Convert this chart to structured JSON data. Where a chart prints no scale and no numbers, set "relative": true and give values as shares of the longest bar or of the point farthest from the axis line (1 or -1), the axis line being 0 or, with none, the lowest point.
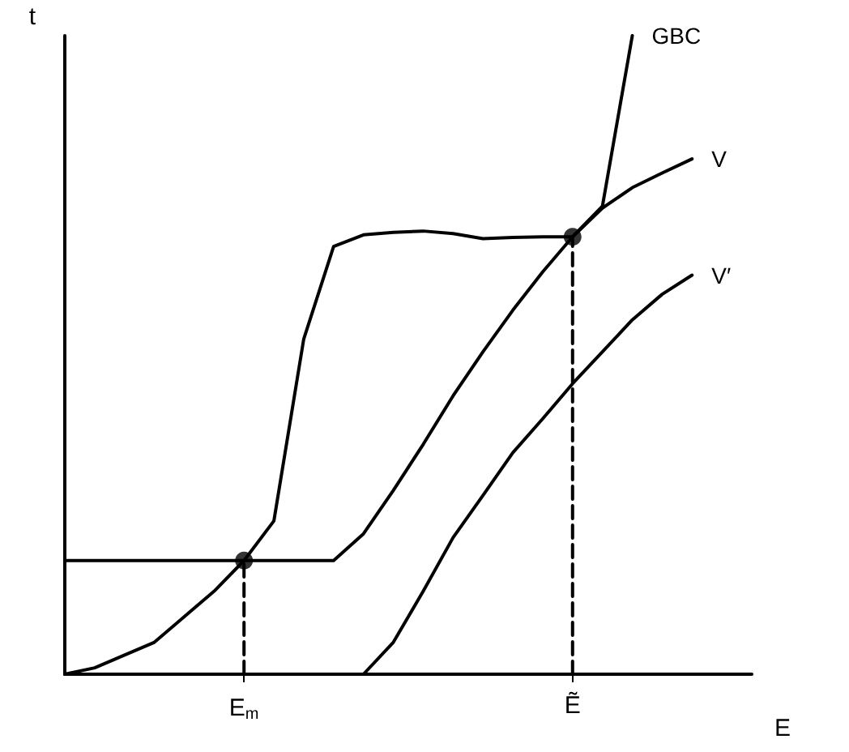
{
  "chart_data": {
    "type": "line",
    "relative": true,
    "xlabel": "E",
    "ylabel": "t",
    "categories": [
      null,
      null,
      null,
      null,
      null,
      null,
      "E$_{m}$",
      null,
      null,
      null,
      null,
      null,
      null,
      null,
      null,
      null,
      null,
      "Ẽ",
      null,
      null,
      null,
      null,
      null,
      null
    ],
    "tick_labels": "x",
    "grid": false,
    "legend": false,
    "marker": "none",
    "series": [
      {
        "name": "GBC",
        "color": "#000000",
        "values": [
          0,
          0.01,
          0.03,
          0.05,
          0.09,
          0.13,
          0.178,
          0.24,
          0.525,
          0.67,
          0.688,
          0.692,
          0.694,
          0.69,
          0.682,
          0.684,
          0.685,
          0.685,
          0.733,
          1.0,
          null,
          null,
          null,
          null
        ]
      },
      {
        "name": "V",
        "color": "#000000",
        "values": [
          0.178,
          0.178,
          0.178,
          0.178,
          0.178,
          0.178,
          0.178,
          0.178,
          0.178,
          0.178,
          0.22,
          0.288,
          0.36,
          0.436,
          0.505,
          0.57,
          0.63,
          0.685,
          0.73,
          0.762,
          0.785,
          0.807,
          null,
          null
        ]
      },
      {
        "name": "V′",
        "color": "#000000",
        "values": [
          0,
          0,
          0,
          0,
          0,
          0,
          0,
          0,
          0,
          0,
          0,
          0.05,
          0.13,
          0.214,
          0.28,
          0.347,
          0.4,
          0.455,
          0.505,
          0.555,
          0.595,
          0.625,
          null,
          null
        ]
      },
      {
        "color": "#000000",
        "line_style": "dashed",
        "x": [
          "E$_{m}$",
          "E$_{m}$"
        ],
        "values": [
          0,
          0.178
        ]
      },
      {
        "color": "#000000",
        "line_style": "dashed",
        "x": [
          "Ẽ",
          "Ẽ"
        ],
        "values": [
          0,
          0.685
        ]
      },
      {
        "type": "scatter",
        "color": "#000000",
        "marker": "circle",
        "x": [
          "E$_{m}$",
          "Ẽ"
        ],
        "values": [
          0.178,
          0.685
        ]
      }
    ]
  }
}
